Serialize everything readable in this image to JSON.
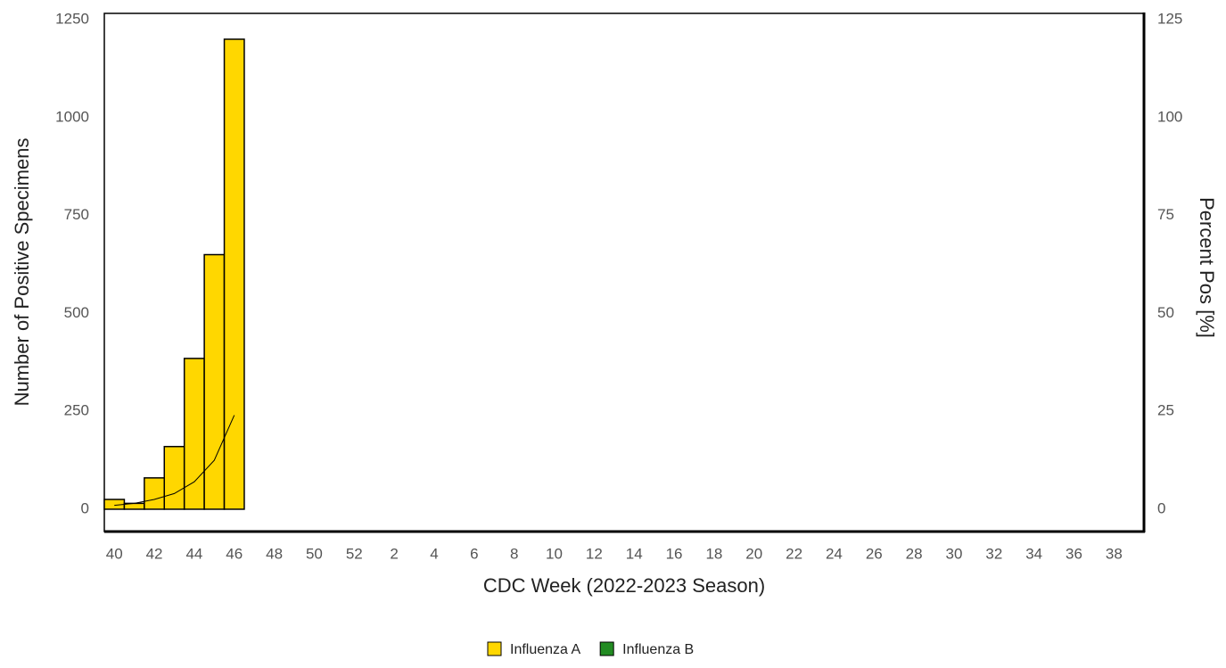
{
  "chart_data": {
    "type": "bar",
    "x_label": "CDC Week (2022-2023 Season)",
    "y_label": "Number of Positive Specimens",
    "y2_label": "Percent Pos [%]",
    "categories": [
      "40",
      null,
      "42",
      null,
      "44",
      null,
      "46",
      null,
      "48",
      null,
      "50",
      null,
      "52",
      null,
      "2",
      null,
      "4",
      null,
      "6",
      null,
      "8",
      null,
      "10",
      null,
      "12",
      null,
      "14",
      null,
      "16",
      null,
      "18",
      null,
      "20",
      null,
      "22",
      null,
      "24",
      null,
      "26",
      null,
      "28",
      null,
      "30",
      null,
      "32",
      null,
      "34",
      null,
      "36",
      null,
      "38",
      null
    ],
    "ylim": [
      -57,
      1266
    ],
    "yticks": [
      0,
      250,
      500,
      750,
      1000,
      1250
    ],
    "y2lim": [
      -5.7,
      126.6
    ],
    "y2ticks": [
      0,
      25,
      50,
      75,
      100,
      125
    ],
    "legend": "bottom",
    "series": [
      {
        "name": "Influenza A",
        "color": "#ffd700",
        "values": [
          25,
          15,
          80,
          160,
          385,
          650,
          1200,
          null,
          null,
          null,
          null,
          null,
          null,
          null,
          null,
          null,
          null,
          null,
          null,
          null,
          null,
          null,
          null,
          null,
          null,
          null,
          null,
          null,
          null,
          null,
          null,
          null,
          null,
          null,
          null,
          null,
          null,
          null,
          null,
          null,
          null,
          null,
          null,
          null,
          null,
          null,
          null,
          null,
          null,
          null,
          null,
          null
        ]
      },
      {
        "name": "Influenza B",
        "color": "#228b22",
        "values": [
          0,
          0,
          0,
          0,
          0,
          0,
          0,
          null,
          null,
          null,
          null,
          null,
          null,
          null,
          null,
          null,
          null,
          null,
          null,
          null,
          null,
          null,
          null,
          null,
          null,
          null,
          null,
          null,
          null,
          null,
          null,
          null,
          null,
          null,
          null,
          null,
          null,
          null,
          null,
          null,
          null,
          null,
          null,
          null,
          null,
          null,
          null,
          null,
          null,
          null,
          null,
          null
        ]
      },
      {
        "type": "line",
        "axis": "y2",
        "color": "#000000",
        "values": [
          1,
          1.5,
          2.5,
          4,
          7,
          12.5,
          24,
          null,
          null,
          null,
          null,
          null,
          null,
          null,
          null,
          null,
          null,
          null,
          null,
          null,
          null,
          null,
          null,
          null,
          null,
          null,
          null,
          null,
          null,
          null,
          null,
          null,
          null,
          null,
          null,
          null,
          null,
          null,
          null,
          null,
          null,
          null,
          null,
          null,
          null,
          null,
          null,
          null,
          null,
          null,
          null,
          null
        ]
      }
    ]
  }
}
